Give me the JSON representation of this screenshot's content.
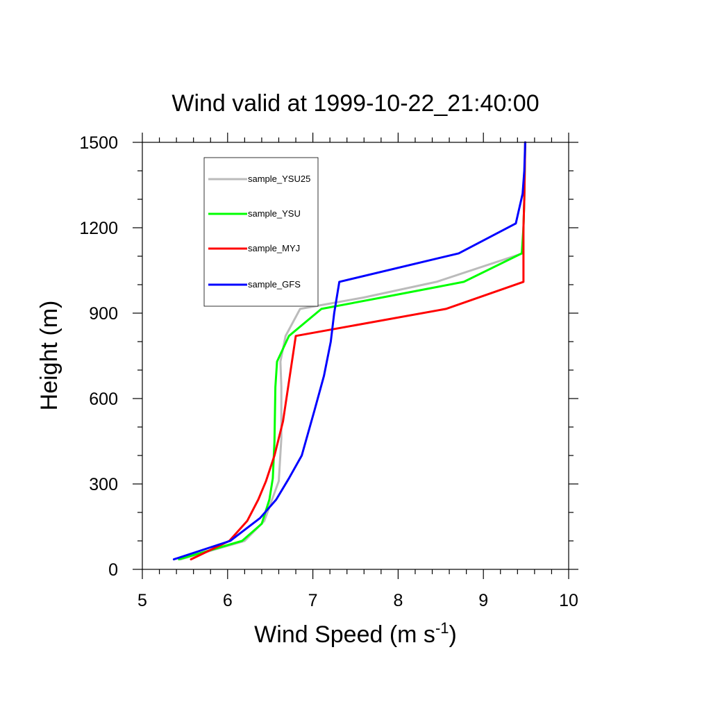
{
  "chart_data": {
    "type": "line",
    "title": "Wind valid at 1999-10-22_21:40:00",
    "xlabel": "Wind Speed (m s",
    "xlabel_superscript": "-1",
    "xlabel_suffix": ")",
    "ylabel": "Height (m)",
    "xlim": [
      5,
      10
    ],
    "ylim": [
      0,
      1500
    ],
    "xticks": [
      5,
      6,
      7,
      8,
      9,
      10
    ],
    "yticks": [
      0,
      300,
      600,
      900,
      1200,
      1500
    ],
    "xtick_labels": [
      "5",
      "6",
      "7",
      "8",
      "9",
      "10"
    ],
    "ytick_labels": [
      "0",
      "300",
      "600",
      "900",
      "1200",
      "1500"
    ],
    "x_minor_step": 0.2,
    "y_minor_step": 100,
    "grid": false,
    "legend_position": "top-left",
    "series": [
      {
        "name": "sample_YSU25",
        "color": "#bbbbbb",
        "x": [
          5.45,
          6.2,
          6.43,
          6.6,
          6.63,
          6.63,
          6.62,
          6.68,
          6.85,
          7.6,
          8.45,
          9.46,
          9.47,
          9.48,
          9.49
        ],
        "y": [
          35,
          100,
          170,
          310,
          460,
          640,
          730,
          820,
          915,
          955,
          1010,
          1110,
          1200,
          1300,
          1500
        ]
      },
      {
        "name": "sample_YSU",
        "color": "#00ff00",
        "x": [
          5.43,
          6.17,
          6.4,
          6.49,
          6.53,
          6.55,
          6.56,
          6.58,
          6.72,
          7.1,
          7.9,
          8.77,
          9.45,
          9.47,
          9.48,
          9.49
        ],
        "y": [
          35,
          100,
          160,
          245,
          320,
          450,
          640,
          730,
          820,
          915,
          960,
          1010,
          1110,
          1200,
          1300,
          1500
        ]
      },
      {
        "name": "sample_MYJ",
        "color": "#ff0000",
        "x": [
          5.57,
          6.02,
          6.23,
          6.36,
          6.45,
          6.55,
          6.65,
          6.8,
          8.56,
          9.47,
          9.47,
          9.48,
          9.49
        ],
        "y": [
          35,
          100,
          170,
          245,
          310,
          400,
          520,
          820,
          915,
          1010,
          1200,
          1300,
          1500
        ]
      },
      {
        "name": "sample_GFS",
        "color": "#0000ff",
        "x": [
          5.37,
          6.03,
          6.38,
          6.57,
          6.72,
          6.87,
          7.02,
          7.13,
          7.21,
          7.25,
          7.31,
          8.71,
          9.38,
          9.46,
          9.48,
          9.49
        ],
        "y": [
          35,
          100,
          180,
          245,
          320,
          400,
          560,
          680,
          800,
          900,
          1010,
          1110,
          1215,
          1320,
          1400,
          1500
        ]
      }
    ]
  }
}
